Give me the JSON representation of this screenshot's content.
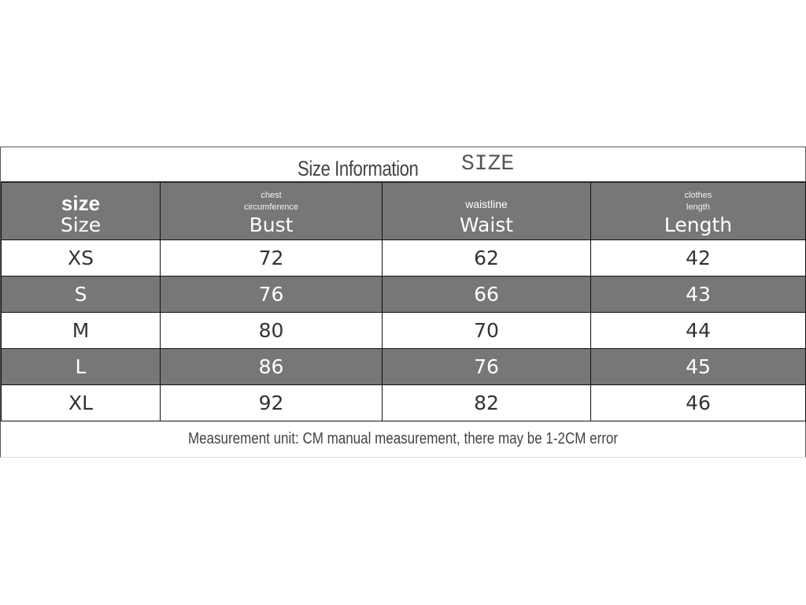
{
  "title": "Size Information",
  "title_en": "SIZE",
  "headers": [
    {
      "sub": "size",
      "label": "Size"
    },
    {
      "sub": [
        "chest",
        "circumference"
      ],
      "label": "Bust"
    },
    {
      "sub": "waistline",
      "label": "Waist"
    },
    {
      "sub": [
        "clothes",
        "length"
      ],
      "label": "Length"
    }
  ],
  "rows": [
    [
      "XS",
      "72",
      "62",
      "42"
    ],
    [
      "S",
      "76",
      "66",
      "43"
    ],
    [
      "M",
      "80",
      "70",
      "44"
    ],
    [
      "L",
      "86",
      "76",
      "45"
    ],
    [
      "XL",
      "92",
      "82",
      "46"
    ]
  ],
  "footer": "Measurement unit: CM manual measurement, there may be 1-2CM error",
  "colors": {
    "header_bg": "#777777",
    "text": "#333333"
  }
}
